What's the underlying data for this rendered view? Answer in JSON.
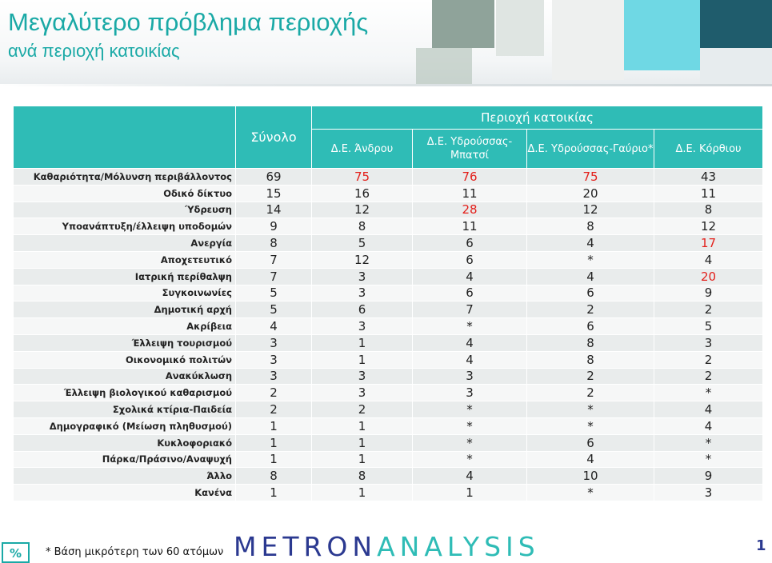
{
  "title": "Μεγαλύτερο πρόβλημα περιοχής",
  "subtitle": "ανά περιοχή κατοικίας",
  "table": {
    "total_header": "Σύνολο",
    "region_header": "Περιοχή κατοικίας",
    "columns": [
      "Δ.Ε. Άνδρου",
      "Δ.Ε. Υδρούσσας-Μπατσί",
      "Δ.Ε. Υδρούσσας-Γαύριο*",
      "Δ.Ε. Κόρθιου"
    ],
    "rows": [
      {
        "label": "Καθαριότητα/Μόλυνση περιβάλλοντος",
        "values": [
          "69",
          "75",
          "76",
          "75",
          "43"
        ],
        "highlight": [
          1,
          2,
          3
        ]
      },
      {
        "label": "Οδικό δίκτυο",
        "values": [
          "15",
          "16",
          "11",
          "20",
          "11"
        ],
        "highlight": []
      },
      {
        "label": "Ύδρευση",
        "values": [
          "14",
          "12",
          "28",
          "12",
          "8"
        ],
        "highlight": [
          2
        ]
      },
      {
        "label": "Υποανάπτυξη/έλλειψη υποδομών",
        "values": [
          "9",
          "8",
          "11",
          "8",
          "12"
        ],
        "highlight": []
      },
      {
        "label": "Ανεργία",
        "values": [
          "8",
          "5",
          "6",
          "4",
          "17"
        ],
        "highlight": [
          4
        ]
      },
      {
        "label": "Αποχετευτικό",
        "values": [
          "7",
          "12",
          "6",
          "*",
          "4"
        ],
        "highlight": []
      },
      {
        "label": "Ιατρική περίθαλψη",
        "values": [
          "7",
          "3",
          "4",
          "4",
          "20"
        ],
        "highlight": [
          4
        ]
      },
      {
        "label": "Συγκοινωνίες",
        "values": [
          "5",
          "3",
          "6",
          "6",
          "9"
        ],
        "highlight": []
      },
      {
        "label": "Δημοτική αρχή",
        "values": [
          "5",
          "6",
          "7",
          "2",
          "2"
        ],
        "highlight": []
      },
      {
        "label": "Ακρίβεια",
        "values": [
          "4",
          "3",
          "*",
          "6",
          "5"
        ],
        "highlight": []
      },
      {
        "label": "Έλλειψη τουρισμού",
        "values": [
          "3",
          "1",
          "4",
          "8",
          "3"
        ],
        "highlight": []
      },
      {
        "label": "Οικονομικό πολιτών",
        "values": [
          "3",
          "1",
          "4",
          "8",
          "2"
        ],
        "highlight": []
      },
      {
        "label": "Ανακύκλωση",
        "values": [
          "3",
          "3",
          "3",
          "2",
          "2"
        ],
        "highlight": []
      },
      {
        "label": "Έλλειψη βιολογικού καθαρισμού",
        "values": [
          "2",
          "3",
          "3",
          "2",
          "*"
        ],
        "highlight": []
      },
      {
        "label": "Σχολικά κτίρια-Παιδεία",
        "values": [
          "2",
          "2",
          "*",
          "*",
          "4"
        ],
        "highlight": []
      },
      {
        "label": "Δημογραφικό (Μείωση πληθυσμού)",
        "values": [
          "1",
          "1",
          "*",
          "*",
          "4"
        ],
        "highlight": []
      },
      {
        "label": "Κυκλοφοριακό",
        "values": [
          "1",
          "1",
          "*",
          "6",
          "*"
        ],
        "highlight": []
      },
      {
        "label": "Πάρκα/Πράσινο/Αναψυχή",
        "values": [
          "1",
          "1",
          "*",
          "4",
          "*"
        ],
        "highlight": []
      },
      {
        "label": "Άλλο",
        "values": [
          "8",
          "8",
          "4",
          "10",
          "9"
        ],
        "highlight": []
      },
      {
        "label": "Κανένα",
        "values": [
          "1",
          "1",
          "1",
          "*",
          "3"
        ],
        "highlight": []
      }
    ]
  },
  "footer": {
    "percent_badge": "%",
    "note": "*  Βάση μικρότερη των 60 ατόμων",
    "logo_part1": "METRON",
    "logo_part2": "ANALYSIS",
    "page_number": "1"
  },
  "colors": {
    "accent": "#2fbcb6",
    "title": "#1aa9a6",
    "highlight": "#e3201b",
    "logo_dark": "#2b3990"
  }
}
